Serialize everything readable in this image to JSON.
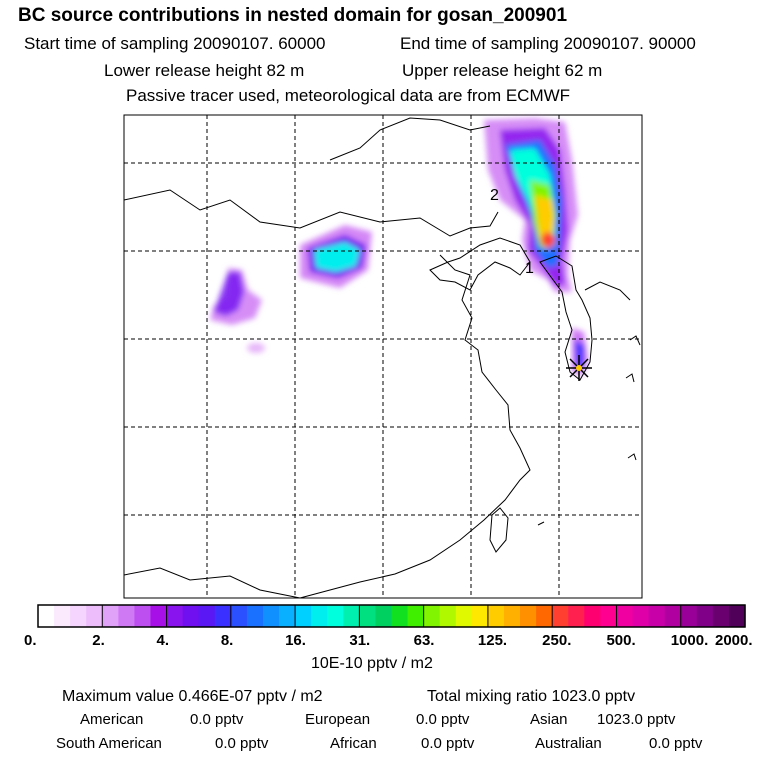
{
  "header": {
    "title": "BC  source contributions in nested domain for gosan_200901",
    "start_label": "Start time of sampling 20090107. 60000",
    "end_label": "End time of sampling 20090107. 90000",
    "lower_label": "Lower release height   82 m",
    "upper_label": "Upper release height   62 m",
    "tracer_note": "Passive tracer used, meteorological data are from ECMWF"
  },
  "map": {
    "markers": [
      "1",
      "2"
    ],
    "receptor_icon": "star-receptor-icon"
  },
  "chart_data": {
    "type": "heatmap",
    "title": "BC  source contributions in nested domain for gosan_200901",
    "colorbar": {
      "tick_labels": [
        "0.",
        "2.",
        "4.",
        "8.",
        "16.",
        "31.",
        "63.",
        "125.",
        "250.",
        "500.",
        "1000.",
        "2000."
      ],
      "unit_label": "10E-10 pptv / m2",
      "colors": [
        "#ffffff",
        "#fbeafe",
        "#f5d5fd",
        "#edbdfb",
        "#e0a2f8",
        "#cf7af4",
        "#bd4ff0",
        "#a810e8",
        "#8a14ee",
        "#7010f0",
        "#5a18f5",
        "#3a30ff",
        "#2a50ff",
        "#1a70ff",
        "#1090ff",
        "#08b0ff",
        "#00d0ff",
        "#00eeee",
        "#00ffdd",
        "#00f0b0",
        "#00e080",
        "#00d060",
        "#10e020",
        "#40ee00",
        "#80f400",
        "#b0f800",
        "#e0f800",
        "#ffe800",
        "#ffcc00",
        "#ffb000",
        "#ff9000",
        "#ff6800",
        "#ff4030",
        "#ff2050",
        "#ff0070",
        "#ff0090",
        "#f000a0",
        "#e000a8",
        "#c800a8",
        "#b000a0",
        "#980098",
        "#800088",
        "#6a0070",
        "#500058"
      ]
    },
    "max_value": "Maximum value  0.466E-07 pptv / m2",
    "total_mixing": "Total mixing ratio      1023.0 pptv"
  },
  "footer": {
    "american": "American",
    "american_val": "0.0 pptv",
    "european": "European",
    "european_val": "0.0 pptv",
    "asian": "Asian",
    "asian_val": "1023.0 pptv",
    "south_american": "South American",
    "south_american_val": "0.0 pptv",
    "african": "African",
    "african_val": "0.0 pptv",
    "australian": "Australian",
    "australian_val": "0.0 pptv"
  }
}
